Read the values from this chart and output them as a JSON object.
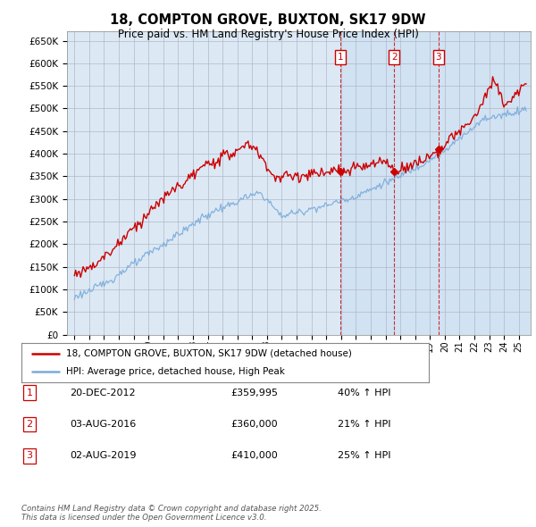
{
  "title": "18, COMPTON GROVE, BUXTON, SK17 9DW",
  "subtitle": "Price paid vs. HM Land Registry's House Price Index (HPI)",
  "plot_bg_color": "#dce9f5",
  "highlight_bg_color": "#c8ddf0",
  "ylim": [
    0,
    670000
  ],
  "yticks": [
    0,
    50000,
    100000,
    150000,
    200000,
    250000,
    300000,
    350000,
    400000,
    450000,
    500000,
    550000,
    600000,
    650000
  ],
  "xlim_start": 1994.5,
  "xlim_end": 2025.8,
  "legend_label_red": "18, COMPTON GROVE, BUXTON, SK17 9DW (detached house)",
  "legend_label_blue": "HPI: Average price, detached house, High Peak",
  "sale_markers": [
    {
      "num": 1,
      "year": 2012.97,
      "price": 359995,
      "label": "1"
    },
    {
      "num": 2,
      "year": 2016.58,
      "price": 360000,
      "label": "2"
    },
    {
      "num": 3,
      "year": 2019.58,
      "price": 410000,
      "label": "3"
    }
  ],
  "sale_info": [
    {
      "num": 1,
      "date": "20-DEC-2012",
      "price": "£359,995",
      "hpi": "40% ↑ HPI"
    },
    {
      "num": 2,
      "date": "03-AUG-2016",
      "price": "£360,000",
      "hpi": "21% ↑ HPI"
    },
    {
      "num": 3,
      "date": "02-AUG-2019",
      "price": "£410,000",
      "hpi": "25% ↑ HPI"
    }
  ],
  "footer": "Contains HM Land Registry data © Crown copyright and database right 2025.\nThis data is licensed under the Open Government Licence v3.0.",
  "red_color": "#cc0000",
  "blue_color": "#7aabdb"
}
